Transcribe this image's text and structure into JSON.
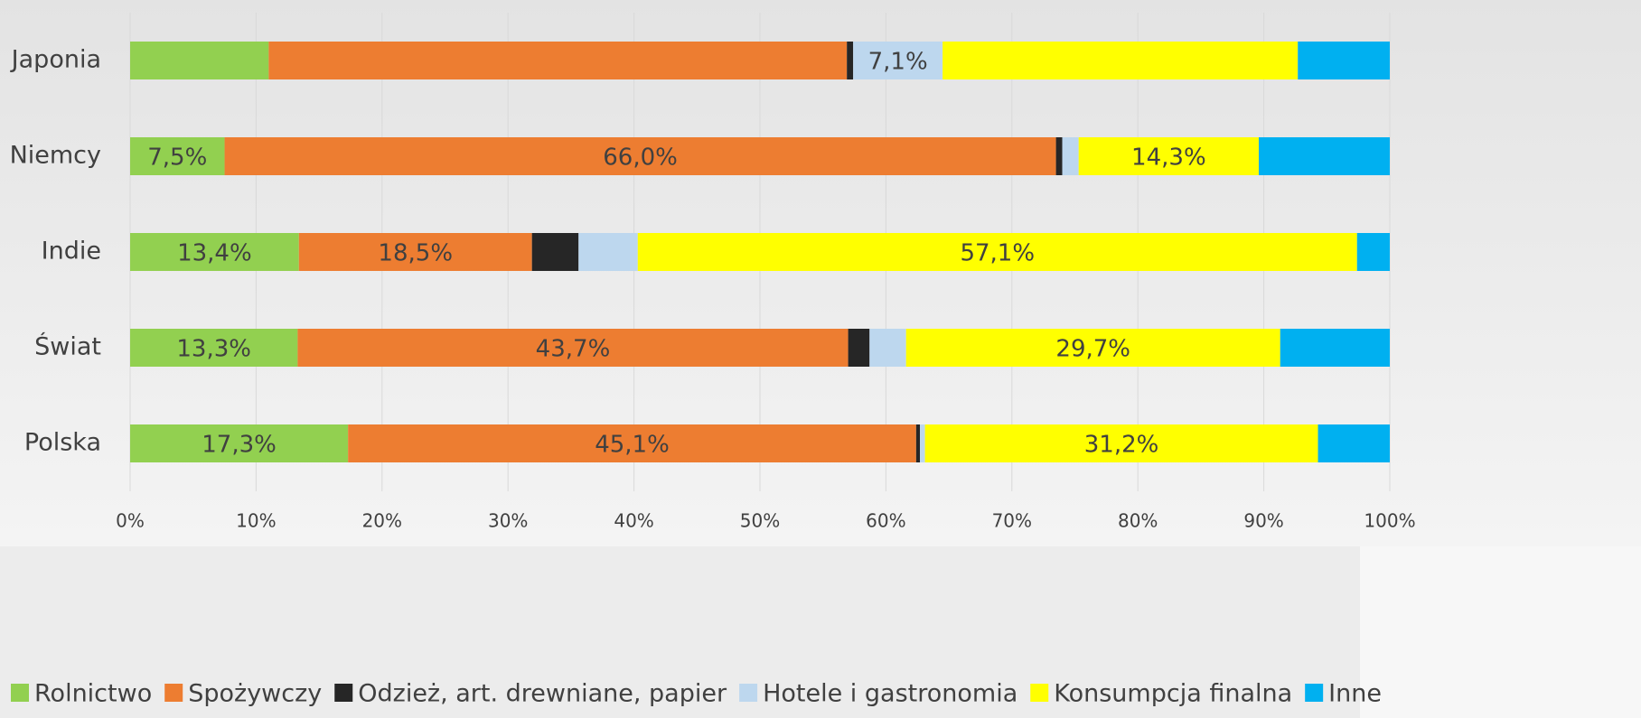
{
  "chart_data": {
    "type": "stacked_bar_horizontal",
    "categories": [
      "Japonia",
      "Niemcy",
      "Indie",
      "Świat",
      "Polska"
    ],
    "series": [
      {
        "name": "Rolnictwo",
        "color": "#92d050",
        "values": [
          11.0,
          7.5,
          13.4,
          13.3,
          17.3
        ],
        "value_labels": [
          null,
          "7,5%",
          "13,4%",
          "13,3%",
          "17,3%"
        ]
      },
      {
        "name": "Spożywczy",
        "color": "#ed7d31",
        "values": [
          45.9,
          66.0,
          18.5,
          43.7,
          45.1
        ],
        "value_labels": [
          null,
          "66,0%",
          "18,5%",
          "43,7%",
          "45,1%"
        ]
      },
      {
        "name": "Odzież, art. drewniane, papier",
        "color": "#262626",
        "values": [
          0.5,
          0.5,
          3.7,
          1.7,
          0.3
        ]
      },
      {
        "name": "Hotele i gastronomia",
        "color": "#bdd7ee",
        "values": [
          7.1,
          1.3,
          4.7,
          2.9,
          0.4
        ],
        "value_labels": [
          "7,1%",
          null,
          null,
          null,
          null
        ]
      },
      {
        "name": "Konsumpcja finalna",
        "color": "#ffff00",
        "values": [
          28.2,
          14.3,
          57.1,
          29.7,
          31.2
        ],
        "value_labels": [
          null,
          "14,3%",
          "57,1%",
          "29,7%",
          "31,2%"
        ]
      },
      {
        "name": "Inne",
        "color": "#00b0f0",
        "values": [
          7.3,
          10.4,
          2.6,
          8.7,
          5.7
        ]
      }
    ],
    "xlim": [
      0,
      100
    ],
    "xticks": [
      {
        "value": 0,
        "label": "0%"
      },
      {
        "value": 10,
        "label": "10%"
      },
      {
        "value": 20,
        "label": "20%"
      },
      {
        "value": 30,
        "label": "30%"
      },
      {
        "value": 40,
        "label": "40%"
      },
      {
        "value": 50,
        "label": "50%"
      },
      {
        "value": 60,
        "label": "60%"
      },
      {
        "value": 70,
        "label": "70%"
      },
      {
        "value": 80,
        "label": "80%"
      },
      {
        "value": 90,
        "label": "90%"
      },
      {
        "value": 100,
        "label": "100%"
      }
    ],
    "grid": true,
    "legend": "bottom"
  }
}
